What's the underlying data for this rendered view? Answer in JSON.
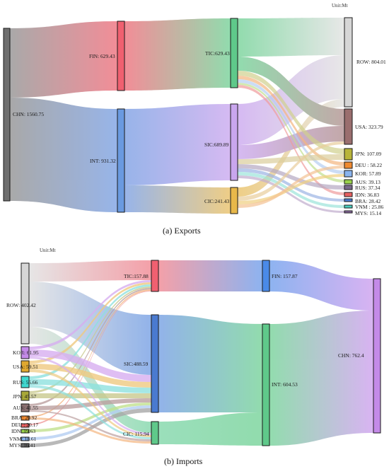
{
  "panels": {
    "exports": {
      "caption": "(a) Exports",
      "unit": "Unit:Mt",
      "nodes": {
        "chn": {
          "label": "CHN: 1560.75",
          "value": 1560.75,
          "color": "#6f6f6f"
        },
        "fin": {
          "label": "FIN: 629.43",
          "value": 629.43,
          "color": "#f06070"
        },
        "int": {
          "label": "INT: 931.32",
          "value": 931.32,
          "color": "#6a9ae0"
        },
        "tic": {
          "label": "TIC:629.43",
          "value": 629.43,
          "color": "#5fc98a"
        },
        "sic": {
          "label": "SIC:689.89",
          "value": 689.89,
          "color": "#c9a6ee"
        },
        "cic": {
          "label": "CIC:241.43",
          "value": 241.43,
          "color": "#e8b84a"
        },
        "row": {
          "label": "ROW: 804.01",
          "value": 804.01,
          "color": "#d6d6d6"
        },
        "usa": {
          "label": "USA: 323.79",
          "value": 323.79,
          "color": "#9a6e6e"
        },
        "jpn": {
          "label": "JPN: 107.09",
          "value": 107.09,
          "color": "#b8b43a"
        },
        "deu": {
          "label": "DEU : 58.22",
          "value": 58.22,
          "color": "#f08a30"
        },
        "kor": {
          "label": "KOR: 57.89",
          "value": 57.89,
          "color": "#8ab4ee"
        },
        "aus": {
          "label": "AUS: 39.13",
          "value": 39.13,
          "color": "#9ad24a"
        },
        "rus": {
          "label": "RUS: 37.34",
          "value": 37.34,
          "color": "#7a6a8a"
        },
        "idn": {
          "label": "IDN: 36.83",
          "value": 36.83,
          "color": "#e86060"
        },
        "bra": {
          "label": "BRA: 28.42",
          "value": 28.42,
          "color": "#4a7ad0"
        },
        "vnm": {
          "label": "VNM : 25.86",
          "value": 25.86,
          "color": "#4ad0c0"
        },
        "mys": {
          "label": "MYS: 15.14",
          "value": 15.14,
          "color": "#8a6aa0"
        }
      }
    },
    "imports": {
      "caption": "(b) Imports",
      "unit": "Unit:Mt",
      "nodes": {
        "row": {
          "label": "ROW: 402.42",
          "value": 402.42,
          "color": "#d6d6d6"
        },
        "kor": {
          "label": "KOR: 61.95",
          "value": 61.95,
          "color": "#c48ae8"
        },
        "usa": {
          "label": "USA: 59.51",
          "value": 59.51,
          "color": "#e0a830"
        },
        "rus": {
          "label": "RUS: 55.66",
          "value": 55.66,
          "color": "#40d8d0"
        },
        "jpn": {
          "label": "JPN: 45.57",
          "value": 45.57,
          "color": "#a8a838"
        },
        "aus": {
          "label": "AUS: 41.55",
          "value": 41.55,
          "color": "#8a7070"
        },
        "bra": {
          "label": "BRA: 20.92",
          "value": 20.92,
          "color": "#f08a30"
        },
        "deu": {
          "label": "DEU : 20.17",
          "value": 20.17,
          "color": "#e86060"
        },
        "idn": {
          "label": "IDN: 19.63",
          "value": 19.63,
          "color": "#9ad24a"
        },
        "vnm": {
          "label": "VNM: 18.61",
          "value": 18.61,
          "color": "#8ab4ee"
        },
        "mys": {
          "label": "MYS: 16.41",
          "value": 16.41,
          "color": "#666666"
        },
        "tic": {
          "label": "TIC:157.88",
          "value": 157.88,
          "color": "#f06070"
        },
        "sic": {
          "label": "SIC:488.59",
          "value": 488.59,
          "color": "#4a7ad0"
        },
        "cic": {
          "label": "CIC: 115.94",
          "value": 115.94,
          "color": "#5fc98a"
        },
        "fin": {
          "label": "FIN: 157.87",
          "value": 157.87,
          "color": "#4a8ae8"
        },
        "int": {
          "label": "INT: 604.53",
          "value": 604.53,
          "color": "#5fc98a"
        },
        "chn": {
          "label": "CHN: 762.4",
          "value": 762.4,
          "color": "#c48ae8"
        }
      }
    }
  }
}
